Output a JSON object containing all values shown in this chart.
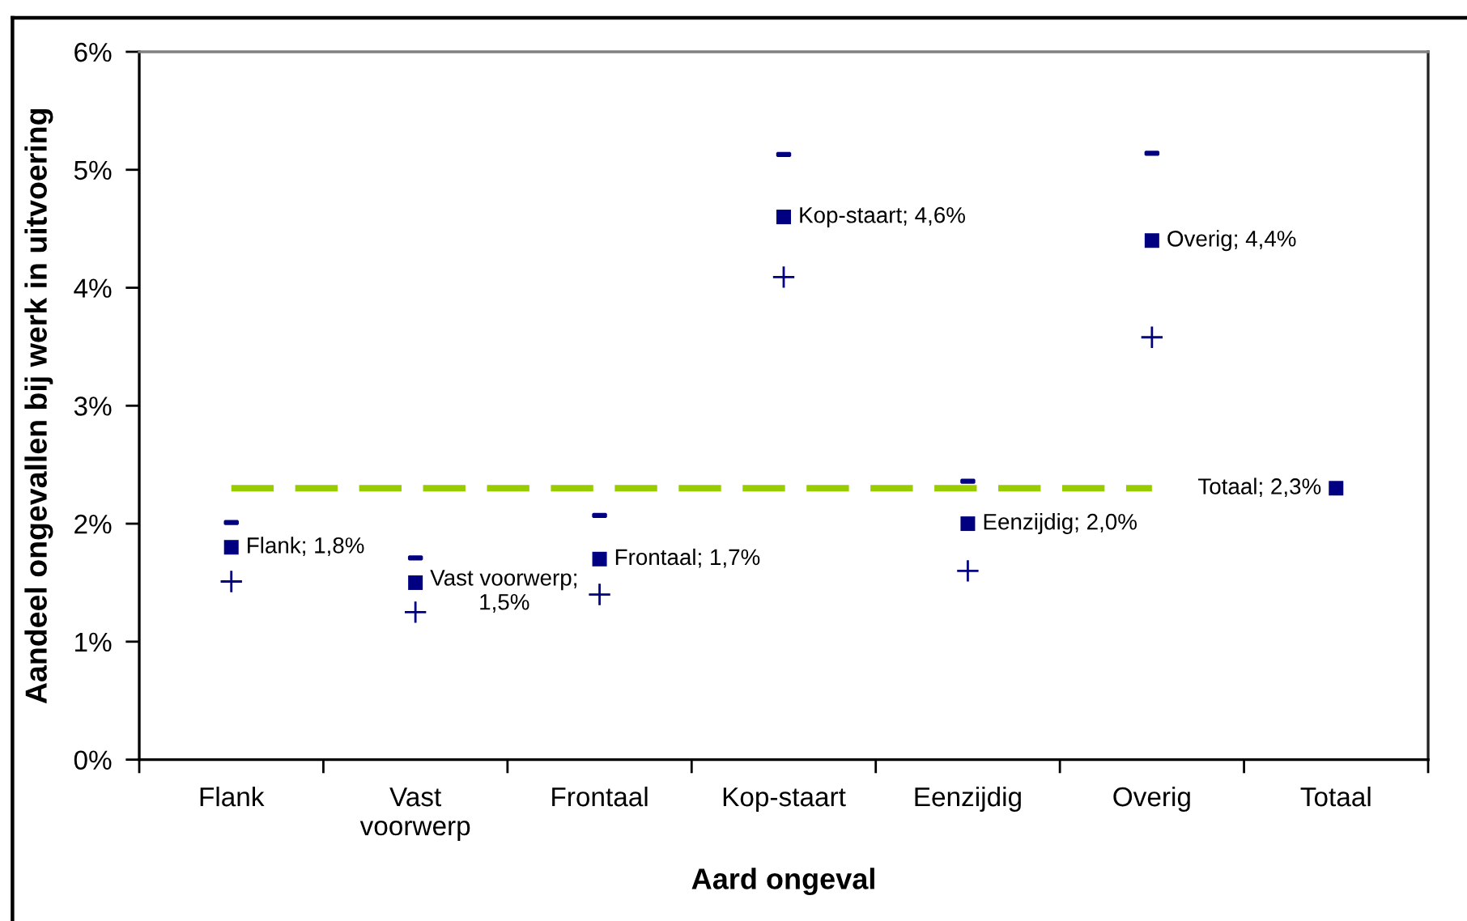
{
  "chart_data": {
    "type": "scatter",
    "xlabel": "Aard ongeval",
    "ylabel": "Aandeel ongevallen bij werk in uitvoering",
    "categories": [
      "Flank",
      "Vast voorwerp",
      "Frontaal",
      "Kop-staart",
      "Eenzijdig",
      "Overig",
      "Totaal"
    ],
    "ylim": [
      0,
      6
    ],
    "yticks": [
      {
        "value": 0,
        "label": "0%"
      },
      {
        "value": 1,
        "label": "1%"
      },
      {
        "value": 2,
        "label": "2%"
      },
      {
        "value": 3,
        "label": "3%"
      },
      {
        "value": 4,
        "label": "4%"
      },
      {
        "value": 5,
        "label": "5%"
      },
      {
        "value": 6,
        "label": "6%"
      }
    ],
    "series": [
      {
        "type": "line",
        "color": "#99cc00",
        "line_style": "dashed",
        "marker": "none",
        "values": [
          2.3,
          2.3,
          2.3,
          2.3,
          2.3,
          2.3,
          null
        ]
      },
      {
        "color": "#000080",
        "values": [
          2.01,
          1.71,
          2.07,
          5.13,
          2.36,
          5.14,
          null
        ]
      },
      {
        "color": "#000080",
        "marker": "square",
        "values": [
          1.8,
          1.5,
          1.7,
          4.6,
          2.0,
          4.4,
          2.3
        ],
        "value_labels": [
          "Flank; 1,8%",
          "Vast voorwerp; 1,5%",
          "Frontaal; 1,7%",
          "Kop-staart; 4,6%",
          "Eenzijdig; 2,0%",
          "Overig; 4,4%",
          "Totaal; 2,3%"
        ]
      },
      {
        "color": "#000080",
        "marker": "cross",
        "values": [
          1.51,
          1.25,
          1.4,
          4.09,
          1.6,
          3.58,
          null
        ]
      }
    ]
  }
}
